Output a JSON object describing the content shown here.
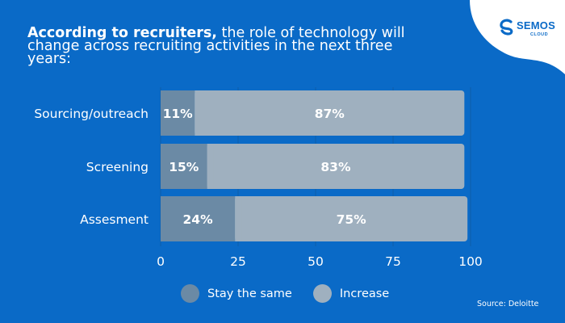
{
  "title": {
    "bold": "According to recruiters,",
    "rest": " the role of technology will change across recruiting activities in the next three years:"
  },
  "logo": {
    "name": "SEMOS",
    "sub": "CLOUD",
    "icon": "semos-cloud-logo-icon"
  },
  "source": "Source: Deloitte",
  "colors": {
    "background": "#0a6ac7",
    "stay_the_same": "#6b8aa5",
    "increase": "#9fb0bf",
    "text": "#ffffff"
  },
  "chart_data": {
    "type": "bar",
    "orientation": "horizontal",
    "stacked": true,
    "categories": [
      "Sourcing/outreach",
      "Screening",
      "Assesment"
    ],
    "series": [
      {
        "name": "Stay the same",
        "values": [
          11,
          15,
          24
        ],
        "labels": [
          "11%",
          "15%",
          "24%"
        ]
      },
      {
        "name": "Increase",
        "values": [
          87,
          83,
          75
        ],
        "labels": [
          "87%",
          "83%",
          "75%"
        ]
      }
    ],
    "xlim": [
      0,
      100
    ],
    "xticks": [
      "0",
      "25",
      "50",
      "75",
      "100"
    ],
    "grid": true,
    "legend": "bottom"
  }
}
